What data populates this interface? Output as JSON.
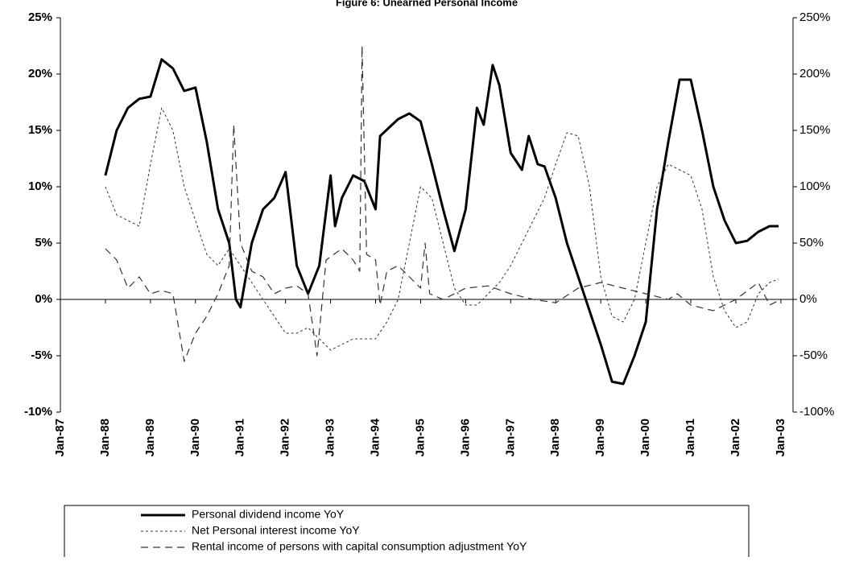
{
  "chart_data": {
    "type": "line",
    "title": "Figure 6: Unearned Personal Income",
    "xlim": [
      1987,
      2003.27
    ],
    "xticks": [
      {
        "value": 1987,
        "label": "Jan-87"
      },
      {
        "value": 1988,
        "label": "Jan-88"
      },
      {
        "value": 1989,
        "label": "Jan-89"
      },
      {
        "value": 1990,
        "label": "Jan-90"
      },
      {
        "value": 1991,
        "label": "Jan-91"
      },
      {
        "value": 1992,
        "label": "Jan-92"
      },
      {
        "value": 1993,
        "label": "Jan-93"
      },
      {
        "value": 1994,
        "label": "Jan-94"
      },
      {
        "value": 1995,
        "label": "Jan-95"
      },
      {
        "value": 1996,
        "label": "Jan-96"
      },
      {
        "value": 1997,
        "label": "Jan-97"
      },
      {
        "value": 1998,
        "label": "Jan-98"
      },
      {
        "value": 1999,
        "label": "Jan-99"
      },
      {
        "value": 2000,
        "label": "Jan-00"
      },
      {
        "value": 2001,
        "label": "Jan-01"
      },
      {
        "value": 2002,
        "label": "Jan-02"
      },
      {
        "value": 2003,
        "label": "Jan-03"
      }
    ],
    "ylim": [
      -10,
      25
    ],
    "yticks": [
      {
        "value": -10,
        "label": "-10%"
      },
      {
        "value": -5,
        "label": "-5%"
      },
      {
        "value": 0,
        "label": "0%"
      },
      {
        "value": 5,
        "label": "5%"
      },
      {
        "value": 10,
        "label": "10%"
      },
      {
        "value": 15,
        "label": "15%"
      },
      {
        "value": 20,
        "label": "20%"
      },
      {
        "value": 25,
        "label": "25%"
      }
    ],
    "y2lim": [
      -100,
      250
    ],
    "y2ticks": [
      {
        "value": -100,
        "label": "-100%"
      },
      {
        "value": -50,
        "label": "-50%"
      },
      {
        "value": 0,
        "label": "0%"
      },
      {
        "value": 50,
        "label": "50%"
      },
      {
        "value": 100,
        "label": "100%"
      },
      {
        "value": 150,
        "label": "150%"
      },
      {
        "value": 200,
        "label": "200%"
      },
      {
        "value": 250,
        "label": "250%"
      }
    ],
    "series": [
      {
        "name": "Personal dividend income YoY",
        "color": "#000000",
        "style": "solid",
        "width": 3,
        "x": [
          1988,
          1988.25,
          1988.5,
          1988.75,
          1989,
          1989.25,
          1989.5,
          1989.75,
          1990,
          1990.25,
          1990.5,
          1990.75,
          1990.9,
          1991,
          1991.25,
          1991.5,
          1991.75,
          1992,
          1992.25,
          1992.5,
          1992.75,
          1993,
          1993.1,
          1993.25,
          1993.5,
          1993.75,
          1994,
          1994.1,
          1994.5,
          1994.75,
          1995,
          1995.25,
          1995.5,
          1995.75,
          1996,
          1996.25,
          1996.4,
          1996.6,
          1996.75,
          1997,
          1997.25,
          1997.4,
          1997.6,
          1997.75,
          1998,
          1998.25,
          1998.5,
          1998.75,
          1999,
          1999.25,
          1999.5,
          1999.75,
          2000,
          2000.25,
          2000.5,
          2000.75,
          2001,
          2001.25,
          2001.5,
          2001.75,
          2002,
          2002.25,
          2002.5,
          2002.75,
          2002.95
        ],
        "values": [
          11,
          15,
          17,
          17.8,
          18,
          21.3,
          20.5,
          18.5,
          18.8,
          14,
          8,
          5,
          0,
          -0.7,
          5,
          8,
          9,
          11.3,
          3,
          0.5,
          3,
          11,
          6.5,
          9,
          11,
          10.5,
          8,
          14.5,
          16,
          16.5,
          15.8,
          12,
          8,
          4.3,
          8,
          17,
          15.5,
          20.8,
          19,
          13,
          11.5,
          14.5,
          12,
          11.8,
          9,
          5,
          2,
          -1,
          -4,
          -7.3,
          -7.5,
          -5,
          -2,
          8,
          14,
          19.5,
          19.5,
          15,
          10,
          7,
          5,
          5.2,
          6,
          6.5,
          6.5
        ]
      },
      {
        "name": "Net Personal interest income YoY",
        "color": "#333333",
        "style": "dotted",
        "width": 1,
        "x": [
          1988,
          1988.25,
          1988.5,
          1988.75,
          1989,
          1989.25,
          1989.5,
          1989.75,
          1990,
          1990.25,
          1990.5,
          1990.75,
          1991,
          1991.25,
          1991.5,
          1991.75,
          1992,
          1992.25,
          1992.5,
          1992.75,
          1993,
          1993.25,
          1993.5,
          1993.75,
          1994,
          1994.25,
          1994.5,
          1994.75,
          1995,
          1995.25,
          1995.5,
          1995.75,
          1996,
          1996.25,
          1996.5,
          1996.75,
          1997,
          1997.25,
          1997.5,
          1997.75,
          1998,
          1998.25,
          1998.5,
          1998.75,
          1999,
          1999.25,
          1999.5,
          1999.75,
          2000,
          2000.25,
          2000.5,
          2000.75,
          2001,
          2001.25,
          2001.5,
          2001.75,
          2002,
          2002.25,
          2002.5,
          2002.75,
          2002.95
        ],
        "values": [
          10,
          7.5,
          7,
          6.5,
          12,
          17,
          15,
          10,
          7,
          4,
          3,
          4.5,
          3,
          1.5,
          0,
          -1.5,
          -3,
          -3,
          -2.5,
          -3.5,
          -4.5,
          -4,
          -3.5,
          -3.5,
          -3.5,
          -2,
          0,
          5,
          10,
          9,
          5,
          1,
          -0.5,
          -0.5,
          0.5,
          1.5,
          3,
          5,
          7,
          9,
          12,
          14.8,
          14.5,
          10,
          2,
          -1.5,
          -2,
          0,
          5,
          10,
          12,
          11.5,
          11,
          8,
          2,
          -1,
          -2.5,
          -2,
          0.5,
          1.5,
          1.8
        ]
      },
      {
        "name": "Rental income of persons with capital consumption adjustment YoY",
        "color": "#333333",
        "style": "dashed",
        "width": 1.2,
        "axis": "y2",
        "x": [
          1988,
          1988.25,
          1988.5,
          1988.75,
          1989,
          1989.25,
          1989.5,
          1989.75,
          1990,
          1990.25,
          1990.5,
          1990.75,
          1990.85,
          1991,
          1991.25,
          1991.5,
          1991.75,
          1992,
          1992.25,
          1992.5,
          1992.7,
          1992.9,
          1993.25,
          1993.5,
          1993.65,
          1993.7,
          1993.8,
          1994,
          1994.1,
          1994.25,
          1994.5,
          1994.75,
          1995,
          1995.1,
          1995.2,
          1995.5,
          1996,
          1996.5,
          1997,
          1997.5,
          1998,
          1998.5,
          1999,
          1999.5,
          2000,
          2000.5,
          2000.7,
          2001,
          2001.5,
          2002,
          2002.5,
          2002.75,
          2003
        ],
        "values": [
          45,
          35,
          10,
          20,
          5,
          8,
          5,
          -55,
          -30,
          -15,
          5,
          30,
          155,
          50,
          25,
          20,
          5,
          10,
          12,
          5,
          -50,
          35,
          45,
          35,
          25,
          225,
          40,
          35,
          -5,
          25,
          30,
          20,
          10,
          50,
          5,
          0,
          10,
          12,
          5,
          0,
          -3,
          10,
          15,
          10,
          5,
          0,
          5,
          -5,
          -10,
          0,
          15,
          -5,
          0
        ]
      }
    ]
  }
}
